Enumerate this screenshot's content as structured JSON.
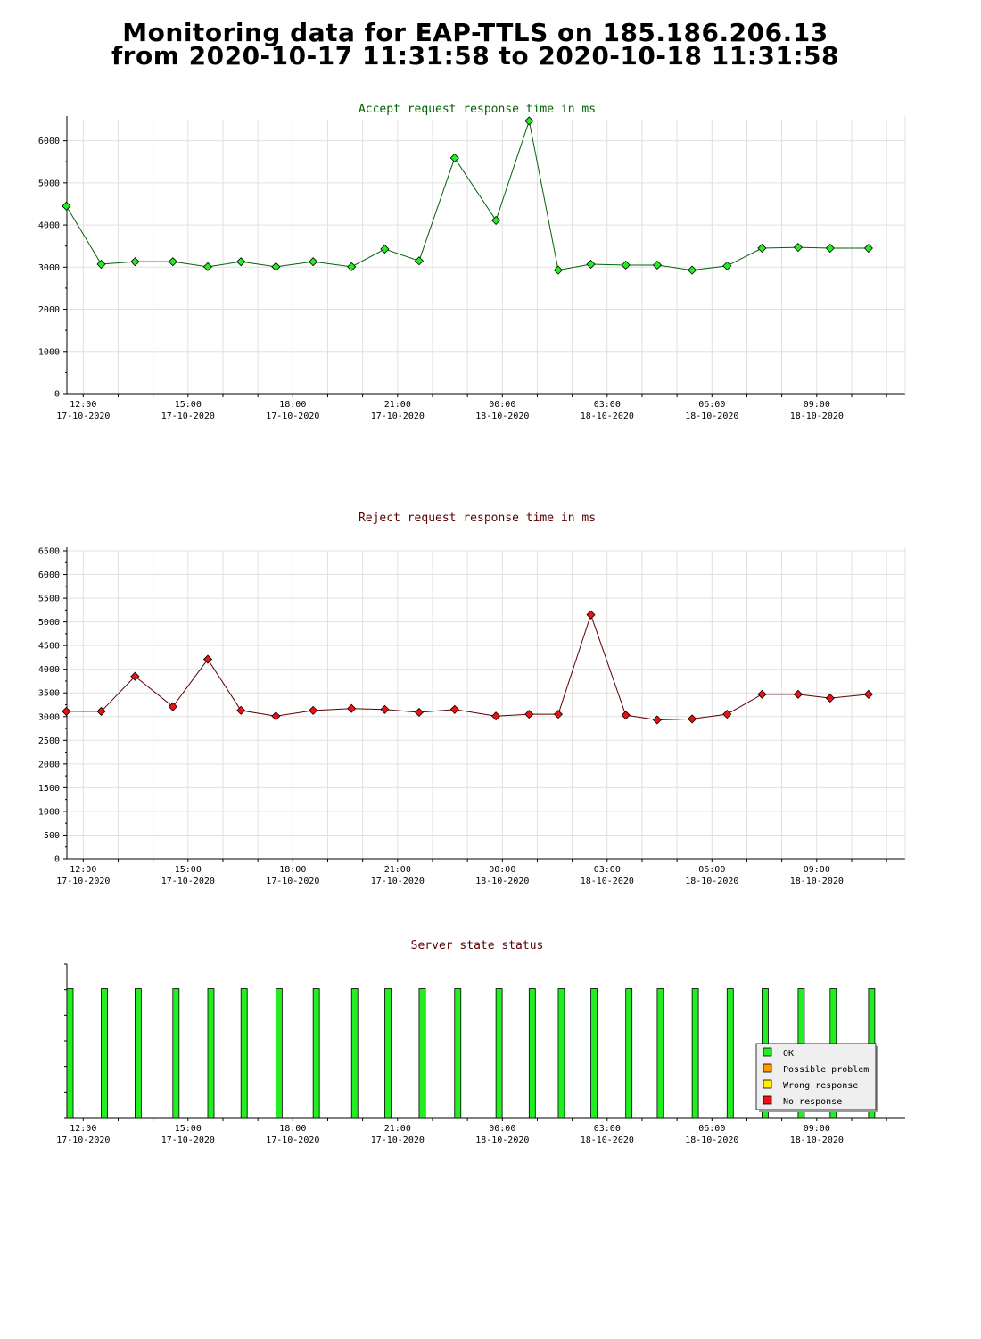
{
  "title": {
    "line1": "Monitoring data for EAP-TTLS on 185.186.206.13",
    "line2": "from 2020-10-17 11:31:58 to 2020-10-18 11:31:58"
  },
  "x_axis": {
    "range": [
      "2020-10-17 11:31:58",
      "2020-10-18 11:31:58"
    ],
    "ticks": [
      {
        "time": "12:00",
        "date": "17-10-2020"
      },
      {
        "time": "15:00",
        "date": "17-10-2020"
      },
      {
        "time": "18:00",
        "date": "17-10-2020"
      },
      {
        "time": "21:00",
        "date": "17-10-2020"
      },
      {
        "time": "00:00",
        "date": "18-10-2020"
      },
      {
        "time": "03:00",
        "date": "18-10-2020"
      },
      {
        "time": "06:00",
        "date": "18-10-2020"
      },
      {
        "time": "09:00",
        "date": "18-10-2020"
      }
    ]
  },
  "chart_data": [
    {
      "type": "line",
      "title": "Accept request response time in ms",
      "title_color": "#006400",
      "line_color": "#006400",
      "marker_color": "#22ee22",
      "ylim": [
        0,
        6500
      ],
      "yticks": [
        0,
        1000,
        2000,
        3000,
        4000,
        5000,
        6000
      ],
      "grid": true,
      "points": [
        {
          "x": "2020-10-17 11:31",
          "y": 4450
        },
        {
          "x": "2020-10-17 12:31",
          "y": 3070
        },
        {
          "x": "2020-10-17 13:29",
          "y": 3130
        },
        {
          "x": "2020-10-17 14:34",
          "y": 3130
        },
        {
          "x": "2020-10-17 15:34",
          "y": 3010
        },
        {
          "x": "2020-10-17 16:31",
          "y": 3130
        },
        {
          "x": "2020-10-17 17:31",
          "y": 3010
        },
        {
          "x": "2020-10-17 18:35",
          "y": 3130
        },
        {
          "x": "2020-10-17 19:41",
          "y": 3010
        },
        {
          "x": "2020-10-17 20:38",
          "y": 3430
        },
        {
          "x": "2020-10-17 21:37",
          "y": 3150
        },
        {
          "x": "2020-10-17 22:38",
          "y": 5590
        },
        {
          "x": "2020-10-17 23:49",
          "y": 4110
        },
        {
          "x": "2020-10-18 00:46",
          "y": 6470
        },
        {
          "x": "2020-10-18 01:36",
          "y": 2930
        },
        {
          "x": "2020-10-18 02:32",
          "y": 3070
        },
        {
          "x": "2020-10-18 03:32",
          "y": 3050
        },
        {
          "x": "2020-10-18 04:26",
          "y": 3050
        },
        {
          "x": "2020-10-18 05:26",
          "y": 2930
        },
        {
          "x": "2020-10-18 06:26",
          "y": 3030
        },
        {
          "x": "2020-10-18 07:26",
          "y": 3450
        },
        {
          "x": "2020-10-18 08:28",
          "y": 3470
        },
        {
          "x": "2020-10-18 09:23",
          "y": 3450
        },
        {
          "x": "2020-10-18 10:29",
          "y": 3450
        }
      ]
    },
    {
      "type": "line",
      "title": "Reject request response time in ms",
      "title_color": "#5a0000",
      "line_color": "#5a0000",
      "marker_color": "#ee1111",
      "ylim": [
        0,
        6500
      ],
      "yticks": [
        0,
        500,
        1000,
        1500,
        2000,
        2500,
        3000,
        3500,
        4000,
        4500,
        5000,
        5500,
        6000,
        6500
      ],
      "grid": true,
      "points": [
        {
          "x": "2020-10-17 11:31",
          "y": 3110
        },
        {
          "x": "2020-10-17 12:31",
          "y": 3110
        },
        {
          "x": "2020-10-17 13:29",
          "y": 3850
        },
        {
          "x": "2020-10-17 14:34",
          "y": 3210
        },
        {
          "x": "2020-10-17 15:34",
          "y": 4210
        },
        {
          "x": "2020-10-17 16:31",
          "y": 3130
        },
        {
          "x": "2020-10-17 17:31",
          "y": 3010
        },
        {
          "x": "2020-10-17 18:35",
          "y": 3130
        },
        {
          "x": "2020-10-17 19:41",
          "y": 3170
        },
        {
          "x": "2020-10-17 20:38",
          "y": 3150
        },
        {
          "x": "2020-10-17 21:37",
          "y": 3090
        },
        {
          "x": "2020-10-17 22:38",
          "y": 3150
        },
        {
          "x": "2020-10-17 23:49",
          "y": 3010
        },
        {
          "x": "2020-10-18 00:46",
          "y": 3050
        },
        {
          "x": "2020-10-18 01:36",
          "y": 3050
        },
        {
          "x": "2020-10-18 02:32",
          "y": 5150
        },
        {
          "x": "2020-10-18 03:32",
          "y": 3030
        },
        {
          "x": "2020-10-18 04:26",
          "y": 2930
        },
        {
          "x": "2020-10-18 05:26",
          "y": 2950
        },
        {
          "x": "2020-10-18 06:26",
          "y": 3050
        },
        {
          "x": "2020-10-18 07:26",
          "y": 3470
        },
        {
          "x": "2020-10-18 08:28",
          "y": 3470
        },
        {
          "x": "2020-10-18 09:23",
          "y": 3390
        },
        {
          "x": "2020-10-18 10:29",
          "y": 3470
        }
      ]
    },
    {
      "type": "bar",
      "title": "Server state status",
      "title_color": "#5a0000",
      "legend_position": "bottom-right",
      "legend": [
        {
          "label": "OK",
          "color": "#22ee22"
        },
        {
          "label": "Possible problem",
          "color": "#ff9900"
        },
        {
          "label": "Wrong response",
          "color": "#ffee00"
        },
        {
          "label": "No response",
          "color": "#ee1111"
        }
      ],
      "status_level": 0.84,
      "bars": [
        {
          "x": "2020-10-17 11:32",
          "status": "OK"
        },
        {
          "x": "2020-10-17 12:31",
          "status": "OK"
        },
        {
          "x": "2020-10-17 13:29",
          "status": "OK"
        },
        {
          "x": "2020-10-17 14:34",
          "status": "OK"
        },
        {
          "x": "2020-10-17 15:34",
          "status": "OK"
        },
        {
          "x": "2020-10-17 16:31",
          "status": "OK"
        },
        {
          "x": "2020-10-17 17:31",
          "status": "OK"
        },
        {
          "x": "2020-10-17 18:35",
          "status": "OK"
        },
        {
          "x": "2020-10-17 19:41",
          "status": "OK"
        },
        {
          "x": "2020-10-17 20:38",
          "status": "OK"
        },
        {
          "x": "2020-10-17 21:37",
          "status": "OK"
        },
        {
          "x": "2020-10-17 22:38",
          "status": "OK"
        },
        {
          "x": "2020-10-17 23:49",
          "status": "OK"
        },
        {
          "x": "2020-10-18 00:46",
          "status": "OK"
        },
        {
          "x": "2020-10-18 01:36",
          "status": "OK"
        },
        {
          "x": "2020-10-18 02:32",
          "status": "OK"
        },
        {
          "x": "2020-10-18 03:32",
          "status": "OK"
        },
        {
          "x": "2020-10-18 04:26",
          "status": "OK"
        },
        {
          "x": "2020-10-18 05:26",
          "status": "OK"
        },
        {
          "x": "2020-10-18 06:26",
          "status": "OK"
        },
        {
          "x": "2020-10-18 07:26",
          "status": "OK"
        },
        {
          "x": "2020-10-18 08:28",
          "status": "OK"
        },
        {
          "x": "2020-10-18 09:23",
          "status": "OK"
        },
        {
          "x": "2020-10-18 10:29",
          "status": "OK"
        }
      ]
    }
  ]
}
